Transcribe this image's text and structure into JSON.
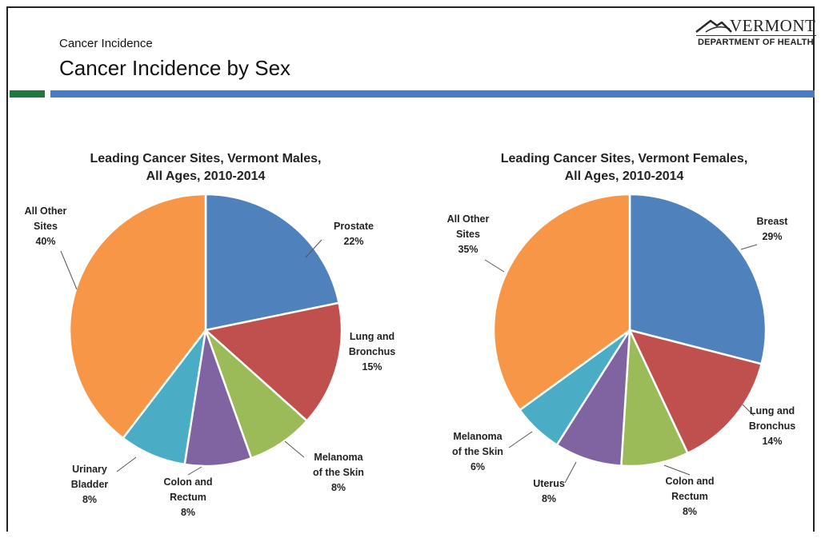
{
  "header": {
    "subtitle": "Cancer Incidence",
    "title": "Cancer Incidence by Sex",
    "logo_state": "VERMONT",
    "logo_dept": "DEPARTMENT OF HEALTH"
  },
  "colors": {
    "green_bar": "#1e7a3a",
    "blue_bar": "#4a7bc8"
  },
  "chart_data": [
    {
      "type": "pie",
      "title_lines": [
        "Leading Cancer Sites, Vermont Males,",
        "All Ages, 2010-2014"
      ],
      "slices": [
        {
          "label": [
            "Prostate"
          ],
          "value": 22,
          "pct": "22%",
          "color": "#4f81bd"
        },
        {
          "label": [
            "Lung and",
            "Bronchus"
          ],
          "value": 15,
          "pct": "15%",
          "color": "#c0504d"
        },
        {
          "label": [
            "Melanoma",
            "of the Skin"
          ],
          "value": 8,
          "pct": "8%",
          "color": "#9bbb59"
        },
        {
          "label": [
            "Colon and",
            "Rectum"
          ],
          "value": 8,
          "pct": "8%",
          "color": "#8064a2"
        },
        {
          "label": [
            "Urinary",
            "Bladder"
          ],
          "value": 8,
          "pct": "8%",
          "color": "#4bacc6"
        },
        {
          "label": [
            "All Other",
            "Sites"
          ],
          "value": 40,
          "pct": "40%",
          "color": "#f79646"
        }
      ]
    },
    {
      "type": "pie",
      "title_lines": [
        "Leading Cancer Sites, Vermont Females,",
        "All Ages, 2010-2014"
      ],
      "slices": [
        {
          "label": [
            "Breast"
          ],
          "value": 29,
          "pct": "29%",
          "color": "#4f81bd"
        },
        {
          "label": [
            "Lung and",
            "Bronchus"
          ],
          "value": 14,
          "pct": "14%",
          "color": "#c0504d"
        },
        {
          "label": [
            "Colon and",
            "Rectum"
          ],
          "value": 8,
          "pct": "8%",
          "color": "#9bbb59"
        },
        {
          "label": [
            "Uterus"
          ],
          "value": 8,
          "pct": "8%",
          "color": "#8064a2"
        },
        {
          "label": [
            "Melanoma",
            "of the Skin"
          ],
          "value": 6,
          "pct": "6%",
          "color": "#4bacc6"
        },
        {
          "label": [
            "All Other",
            "Sites"
          ],
          "value": 35,
          "pct": "35%",
          "color": "#f79646"
        }
      ]
    }
  ]
}
